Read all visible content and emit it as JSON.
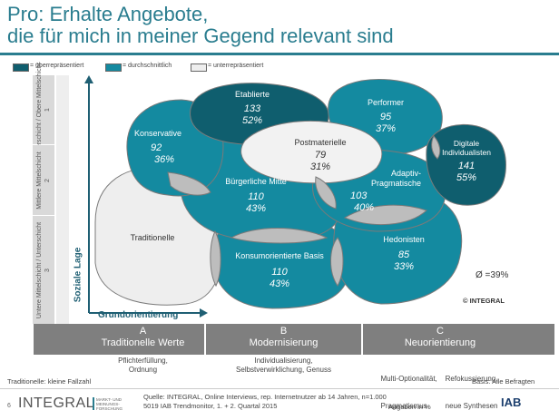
{
  "title": {
    "line1": "Pro: Erhalte Angebote,",
    "line2": "die für mich in meiner Gegend relevant sind"
  },
  "legend": [
    {
      "label": "= überrepräsentiert",
      "color": "#0f5e6e"
    },
    {
      "label": "= durchschnittlich",
      "color": "#148aa0"
    },
    {
      "label": "= unterrepräsentiert",
      "color": "#eeeeee"
    }
  ],
  "rows": [
    {
      "label": "Oberschicht / Obere Mittelschicht",
      "number": "1"
    },
    {
      "label": "Mittlere Mittelschicht",
      "number": "2"
    },
    {
      "label": "Untere Mittelschicht / Unterschicht",
      "number": "3"
    }
  ],
  "axis": {
    "y": "Soziale Lage",
    "x": "Grundorientierung"
  },
  "milieus": [
    {
      "name": "Etablierte",
      "value": "133",
      "pct": "52%",
      "level": "over"
    },
    {
      "name": "Performer",
      "value": "95",
      "pct": "37%",
      "level": "avg"
    },
    {
      "name": "Konservative",
      "value": "92",
      "pct": "36%",
      "level": "avg"
    },
    {
      "name": "Postmaterielle",
      "value": "79",
      "pct": "31%",
      "level": "under"
    },
    {
      "name": "Digitale Individualisten",
      "value": "141",
      "pct": "55%",
      "level": "over"
    },
    {
      "name": "Bürgerliche Mitte",
      "value": "110",
      "pct": "43%",
      "level": "avg"
    },
    {
      "name": "Adaptiv-Pragmatische",
      "value": "103",
      "pct": "40%",
      "level": "avg"
    },
    {
      "name": "Traditionelle",
      "value": "",
      "pct": "",
      "level": "under"
    },
    {
      "name": "Hedonisten",
      "value": "85",
      "pct": "33%",
      "level": "avg"
    },
    {
      "name": "Konsumorientierte Basis",
      "value": "110",
      "pct": "43%",
      "level": "avg"
    }
  ],
  "average": "Ø =39%",
  "copyright": "© INTEGRAL",
  "columns": [
    {
      "letter": "A",
      "name": "Traditionelle Werte",
      "sub1": "Pflichterfüllung,",
      "sub2": "Ordnung"
    },
    {
      "letter": "B",
      "name": "Modernisierung",
      "sub1": "Individualisierung,",
      "sub2": "Selbstverwirklichung,  Genuss"
    },
    {
      "letter": "C",
      "name": "Neuorientierung",
      "sub1": "Multi-Optionalität,    Refokussierung,",
      "sub2": "Pragmatismus         neue Synthesen"
    }
  ],
  "notes": {
    "left": "Traditionelle: kleine Fallzahl",
    "right": "Basis: Alle Befragten"
  },
  "footer": {
    "page": "6",
    "brand": "INTEGRAL",
    "brand_sub": "MARKT- UND MEINUNGS- FORSCHUNG",
    "source1": "Quelle: INTEGRAL, Online Interviews, rep. Internetnutzer ab 14 Jahren, n=1.000",
    "source2": "5019 IAB Trendmonitor, 1. + 2. Quartal 2015",
    "unit": "Angaben in %",
    "partner": "IAB"
  }
}
